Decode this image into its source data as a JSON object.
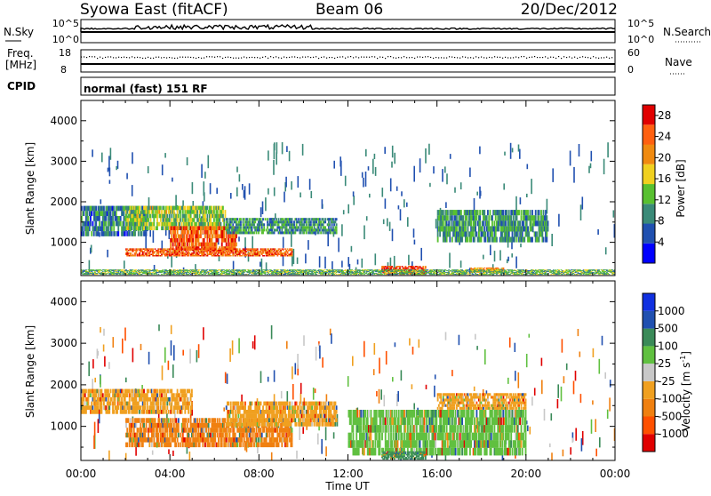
{
  "header": {
    "left_title": "Syowa East (fitACF)",
    "center_title": "Beam 06",
    "right_title": "20/Dec/2012"
  },
  "strip": {
    "nsky_label": "N.Sky",
    "nsky_ticks": [
      "10^5",
      "10^0"
    ],
    "nsearch_label": "N.Search",
    "nsearch_ticks": [
      "10^5",
      "10^0"
    ],
    "freq_label_line1": "Freq.",
    "freq_label_line2": "[MHz]",
    "freq_ticks": [
      "18",
      "8"
    ],
    "nave_label": "Nave",
    "nave_ticks": [
      "60",
      "0"
    ],
    "cpid_label": "CPID",
    "cpid_text": "normal (fast) 151 RF"
  },
  "chart_data": [
    {
      "type": "heatmap",
      "title": "",
      "xlabel": "Time UT",
      "ylabel": "Slant Range [km]",
      "x_ticks": [
        "00:00",
        "04:00",
        "08:00",
        "12:00",
        "16:00",
        "20:00",
        "00:00"
      ],
      "xlim_hours": [
        0,
        24
      ],
      "y_ticks": [
        1000,
        2000,
        3000,
        4000
      ],
      "ylim": [
        180,
        4500
      ],
      "colorbar": {
        "label": "Power [dB]",
        "ticks": [
          4,
          8,
          12,
          16,
          20,
          24,
          28
        ],
        "range": [
          0,
          30
        ],
        "colors": [
          "#0000ff",
          "#2050b0",
          "#3a8a78",
          "#58c030",
          "#f0d020",
          "#f08a10",
          "#ff6010",
          "#e00000"
        ]
      },
      "regions": [
        {
          "t": [
            0.0,
            3.0
          ],
          "range": [
            1150,
            1900
          ],
          "level": 8
        },
        {
          "t": [
            2.0,
            6.5
          ],
          "range": [
            1300,
            1900
          ],
          "level": 14
        },
        {
          "t": [
            4.0,
            7.0
          ],
          "range": [
            800,
            1400
          ],
          "level": 24
        },
        {
          "t": [
            2.0,
            9.5
          ],
          "range": [
            650,
            850
          ],
          "level": 24
        },
        {
          "t": [
            6.5,
            11.5
          ],
          "range": [
            1200,
            1600
          ],
          "level": 10
        },
        {
          "t": [
            13.5,
            15.5
          ],
          "range": [
            200,
            420
          ],
          "level": 26
        },
        {
          "t": [
            17.5,
            19.0
          ],
          "range": [
            250,
            380
          ],
          "level": 22
        },
        {
          "t": [
            16.0,
            21.0
          ],
          "range": [
            1000,
            1800
          ],
          "level": 10
        },
        {
          "t": [
            0.0,
            24.0
          ],
          "range": [
            200,
            330
          ],
          "level": 12
        }
      ]
    },
    {
      "type": "heatmap",
      "title": "",
      "xlabel": "Time UT",
      "ylabel": "Slant Range [km]",
      "x_ticks": [
        "00:00",
        "04:00",
        "08:00",
        "12:00",
        "16:00",
        "20:00",
        "00:00"
      ],
      "xlim_hours": [
        0,
        24
      ],
      "y_ticks": [
        1000,
        2000,
        3000,
        4000
      ],
      "ylim": [
        180,
        4500
      ],
      "colorbar": {
        "label": "Velocity [m s^-1]",
        "ticks": [
          "1000",
          "500",
          "100",
          "25",
          "-25",
          "-100",
          "-500",
          "-1000"
        ],
        "colors": [
          "#1030e0",
          "#2050b0",
          "#3a8a58",
          "#60c040",
          "#c8c8c8",
          "#f0a020",
          "#f08010",
          "#ff5000",
          "#e00000"
        ]
      },
      "regions": [
        {
          "t": [
            0.0,
            5.0
          ],
          "range": [
            1300,
            1900
          ],
          "level": "-25"
        },
        {
          "t": [
            2.0,
            9.5
          ],
          "range": [
            500,
            1200
          ],
          "level": "-100"
        },
        {
          "t": [
            6.5,
            11.5
          ],
          "range": [
            1000,
            1600
          ],
          "level": "-25"
        },
        {
          "t": [
            12.0,
            20.0
          ],
          "range": [
            300,
            1400
          ],
          "level": "100"
        },
        {
          "t": [
            16.0,
            20.0
          ],
          "range": [
            1400,
            1800
          ],
          "level": "-25"
        },
        {
          "t": [
            13.5,
            15.5
          ],
          "range": [
            200,
            400
          ],
          "level": "500"
        }
      ]
    }
  ],
  "colors": {
    "axes": "#000000",
    "background": "#ffffff"
  }
}
